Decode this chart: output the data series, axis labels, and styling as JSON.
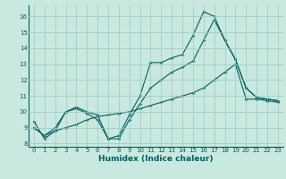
{
  "title": "",
  "xlabel": "Humidex (Indice chaleur)",
  "background_color": "#c8e8e0",
  "grid_color": "#a0c8c0",
  "line_color": "#006060",
  "xlim": [
    -0.5,
    23.5
  ],
  "ylim": [
    7.8,
    16.7
  ],
  "yticks": [
    8,
    9,
    10,
    11,
    12,
    13,
    14,
    15,
    16
  ],
  "xticks": [
    0,
    1,
    2,
    3,
    4,
    5,
    6,
    7,
    8,
    9,
    10,
    11,
    12,
    13,
    14,
    15,
    16,
    17,
    18,
    19,
    20,
    21,
    22,
    23
  ],
  "series1_y": [
    9.4,
    8.3,
    8.8,
    10.0,
    10.3,
    10.0,
    9.8,
    8.3,
    8.5,
    9.8,
    11.0,
    13.1,
    13.1,
    13.4,
    13.6,
    14.8,
    16.3,
    16.0,
    14.5,
    13.3,
    11.5,
    10.9,
    10.8,
    10.7
  ],
  "series2_y": [
    9.0,
    8.5,
    9.0,
    10.0,
    10.2,
    9.9,
    9.5,
    8.3,
    8.3,
    9.5,
    10.5,
    11.5,
    12.0,
    12.5,
    12.8,
    13.2,
    14.5,
    15.8,
    14.5,
    13.3,
    11.5,
    10.9,
    10.8,
    10.7
  ],
  "series3_y": [
    9.0,
    8.5,
    8.8,
    9.0,
    9.2,
    9.5,
    9.7,
    9.8,
    9.9,
    10.0,
    10.2,
    10.4,
    10.6,
    10.8,
    11.0,
    11.2,
    11.5,
    12.0,
    12.5,
    13.0,
    10.8,
    10.8,
    10.7,
    10.6
  ],
  "xlabel_fontsize": 6.5,
  "tick_fontsize": 5.0,
  "lw": 0.8,
  "ms": 1.8
}
